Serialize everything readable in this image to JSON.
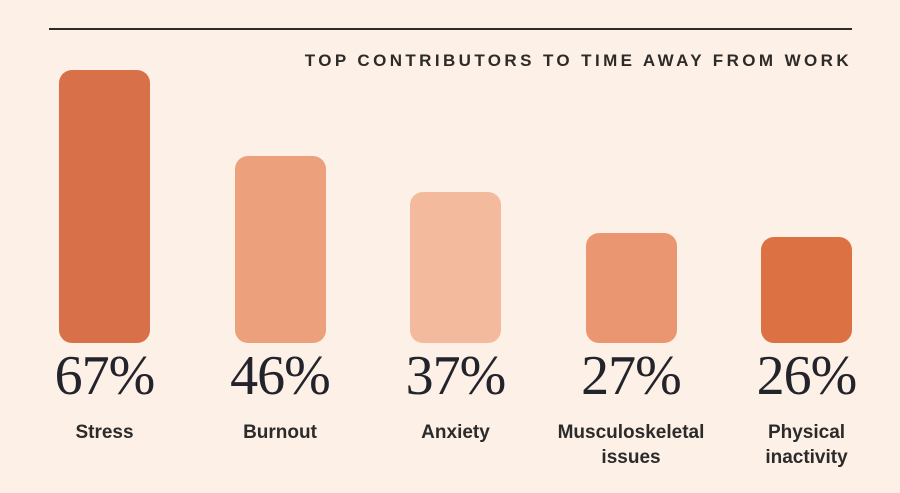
{
  "page": {
    "background": "#fdf0e7"
  },
  "header": {
    "rule_color": "#2f2c28",
    "title_color": "#2d2b28"
  },
  "chart_data": {
    "type": "bar",
    "orientation": "vertical",
    "title": "TOP CONTRIBUTORS TO TIME AWAY FROM WORK",
    "categories": [
      "Stress",
      "Burnout",
      "Anxiety",
      "Musculoskeletal issues",
      "Physical inactivity"
    ],
    "values": [
      67,
      46,
      37,
      27,
      26
    ],
    "value_labels": [
      "67%",
      "46%",
      "37%",
      "27%",
      "26%"
    ],
    "label_lines": [
      [
        "Stress"
      ],
      [
        "Burnout"
      ],
      [
        "Anxiety"
      ],
      [
        "Musculoskeletal",
        "issues"
      ],
      [
        "Physical",
        "inactivity"
      ]
    ],
    "bar_colors": [
      "#d8714a",
      "#eda07c",
      "#f4ba9d",
      "#ea9670",
      "#dc7143"
    ],
    "unit": "percent",
    "ylim": [
      0,
      67
    ],
    "grid": false,
    "legend": "none",
    "value_text_color": "#22232b",
    "label_text_color": "#2b2b2b"
  }
}
